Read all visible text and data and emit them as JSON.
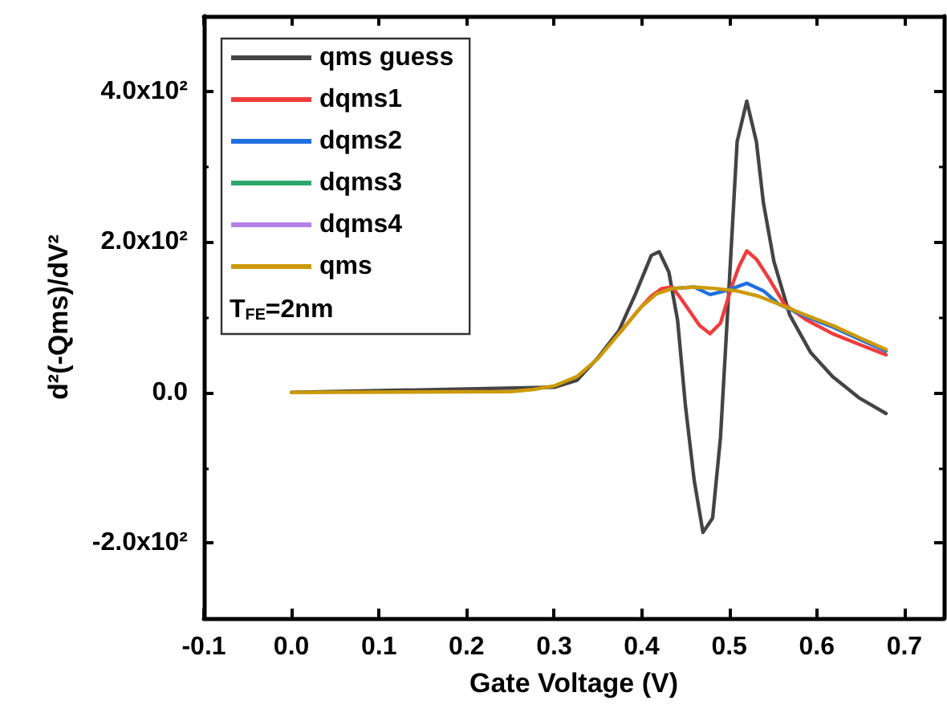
{
  "chart_data": {
    "type": "line",
    "xlabel": "Gate Voltage (V)",
    "ylabel": "d²(-Qms)/dV²",
    "annotations": [
      "T$_{FE}$=2nm"
    ],
    "xlim": [
      -0.1,
      0.745
    ],
    "ylim": [
      -300,
      500
    ],
    "xticks": [
      -0.1,
      {
        "value": 0,
        "label": "0.0"
      },
      0.1,
      0.2,
      0.3,
      0.4,
      0.5,
      0.6,
      0.7
    ],
    "yticks": [
      {
        "value": -200,
        "label": "-2.0x10²"
      },
      {
        "value": 0,
        "label": "0.0"
      },
      {
        "value": 200,
        "label": "2.0x10²"
      },
      {
        "value": 400,
        "label": "4.0x10²"
      }
    ],
    "grid": false,
    "legend": "top left",
    "marker": "none",
    "line_style": "solid",
    "series": [
      {
        "name": "qms guess",
        "color": "#444444",
        "x": [
          0,
          0.301,
          0.326,
          0.35,
          0.374,
          0.393,
          0.411,
          0.42,
          0.431,
          0.441,
          0.45,
          0.46,
          0.47,
          0.481,
          0.49,
          0.499,
          0.509,
          0.52,
          0.531,
          0.539,
          0.551,
          0.569,
          0.593,
          0.618,
          0.648,
          0.679
        ],
        "values": [
          0,
          7,
          16,
          46,
          82,
          131,
          182,
          187,
          160,
          96,
          -18,
          -117,
          -186,
          -167,
          -60,
          124,
          333,
          387,
          333,
          252,
          174,
          103,
          53,
          21,
          -7,
          -28
        ]
      },
      {
        "name": "dqms1",
        "color": "#f03c3c",
        "x": [
          0.374,
          0.399,
          0.411,
          0.423,
          0.435,
          0.447,
          0.466,
          0.478,
          0.49,
          0.502,
          0.511,
          0.52,
          0.531,
          0.545,
          0.563,
          0.587,
          0.618,
          0.648,
          0.679
        ],
        "values": [
          78,
          113,
          128,
          138,
          140,
          121,
          89,
          78,
          92,
          138,
          167,
          188,
          177,
          152,
          117,
          97,
          78,
          64,
          50
        ]
      },
      {
        "name": "dqms2",
        "color": "#1f6fe0",
        "x": [
          0.435,
          0.46,
          0.478,
          0.496,
          0.52,
          0.539,
          0.557,
          0.587,
          0.618,
          0.648,
          0.679
        ],
        "values": [
          138,
          140,
          130,
          135,
          145,
          135,
          117,
          101,
          87,
          71,
          55
        ]
      },
      {
        "name": "dqms3",
        "color": "#2ca86a"
      },
      {
        "name": "dqms4",
        "color": "#b380e6"
      },
      {
        "name": "qms",
        "color": "#cc9a06",
        "x": [
          0,
          0.25,
          0.277,
          0.301,
          0.326,
          0.35,
          0.374,
          0.399,
          0.417,
          0.435,
          0.46,
          0.484,
          0.508,
          0.533,
          0.557,
          0.587,
          0.618,
          0.648,
          0.679
        ],
        "values": [
          0,
          1,
          4,
          9,
          21,
          45,
          78,
          113,
          131,
          138,
          140,
          138,
          135,
          128,
          117,
          103,
          89,
          73,
          57
        ]
      }
    ]
  }
}
